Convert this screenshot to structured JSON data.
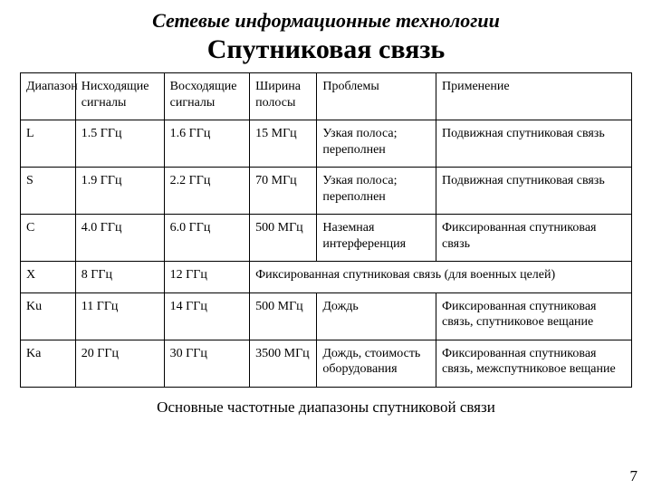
{
  "supertitle": "Сетевые информационные технологии",
  "title": "Спутниковая связь",
  "table": {
    "columns": [
      "Диапазон",
      "Нисходящие сигналы",
      "Восходящие сигналы",
      "Ширина полосы",
      "Проблемы",
      "Применение"
    ],
    "rows": [
      {
        "band": "L",
        "down": "1.5 ГГц",
        "up": "1.6 ГГц",
        "bw": "15 МГц",
        "prob": "Узкая полоса; переполнен",
        "app": "Подвижная спутниковая связь",
        "span": false
      },
      {
        "band": "S",
        "down": "1.9 ГГц",
        "up": "2.2 ГГц",
        "bw": "70 МГц",
        "prob": "Узкая полоса; переполнен",
        "app": "Подвижная спутниковая связь",
        "span": false
      },
      {
        "band": "C",
        "down": "4.0 ГГц",
        "up": "6.0 ГГц",
        "bw": "500 МГц",
        "prob": "Наземная интерференция",
        "app": "Фиксированная спутниковая связь",
        "span": false
      },
      {
        "band": "X",
        "down": "8 ГГц",
        "up": "12 ГГц",
        "bw": "",
        "prob": "",
        "app": "Фиксированная спутниковая связь (для военных целей)",
        "span": true
      },
      {
        "band": "Ku",
        "down": "11 ГГц",
        "up": "14 ГГц",
        "bw": "500 МГц",
        "prob": "Дождь",
        "app": "Фиксированная спутниковая связь, спутниковое вещание",
        "span": false
      },
      {
        "band": "Ka",
        "down": "20 ГГц",
        "up": "30 ГГц",
        "bw": "3500 МГц",
        "prob": "Дождь, стоимость оборудования",
        "app": "Фиксированная спутниковая связь, межспутниковое вещание",
        "span": false
      }
    ],
    "col_widths_pct": [
      9,
      14.5,
      14,
      11,
      19.5,
      32
    ],
    "border_color": "#000000",
    "font_size_pt": 14
  },
  "caption": "Основные частотные диапазоны спутниковой связи",
  "page_number": "7",
  "colors": {
    "background": "#ffffff",
    "text": "#000000"
  }
}
